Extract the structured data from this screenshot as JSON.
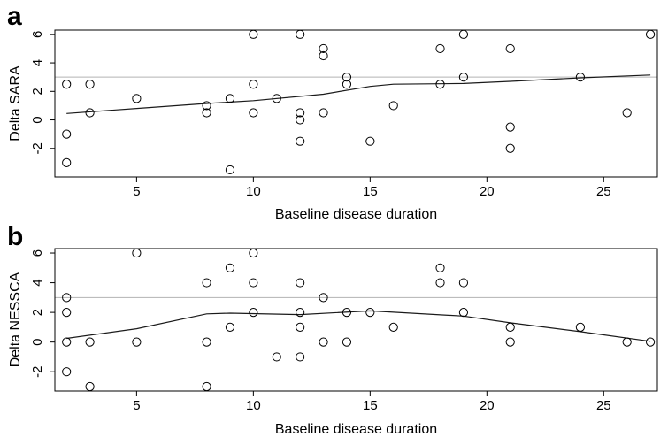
{
  "chart_data": [
    {
      "type": "scatter",
      "panel_label": "a",
      "title": "",
      "xlabel": "Baseline disease duration",
      "ylabel": "Delta SARA",
      "xlim": [
        1.5,
        27.3
      ],
      "ylim": [
        -4.0,
        6.3
      ],
      "x_ticks": [
        5,
        10,
        15,
        20,
        25
      ],
      "y_ticks": [
        -2,
        0,
        2,
        4,
        6
      ],
      "reference_line_y": 3,
      "grid": false,
      "points": [
        {
          "x": 2,
          "y": 2.5
        },
        {
          "x": 2,
          "y": -1
        },
        {
          "x": 2,
          "y": -3
        },
        {
          "x": 3,
          "y": 2.5
        },
        {
          "x": 3,
          "y": 0.5
        },
        {
          "x": 5,
          "y": 1.5
        },
        {
          "x": 8,
          "y": 1
        },
        {
          "x": 8,
          "y": 0.5
        },
        {
          "x": 9,
          "y": 1.5
        },
        {
          "x": 9,
          "y": -3.5
        },
        {
          "x": 10,
          "y": 6
        },
        {
          "x": 10,
          "y": 2.5
        },
        {
          "x": 10,
          "y": 0.5
        },
        {
          "x": 11,
          "y": 1.5
        },
        {
          "x": 12,
          "y": 6
        },
        {
          "x": 12,
          "y": 0.5
        },
        {
          "x": 12,
          "y": 0
        },
        {
          "x": 12,
          "y": -1.5
        },
        {
          "x": 13,
          "y": 5
        },
        {
          "x": 13,
          "y": 4.5
        },
        {
          "x": 13,
          "y": 0.5
        },
        {
          "x": 14,
          "y": 3
        },
        {
          "x": 14,
          "y": 2.5
        },
        {
          "x": 15,
          "y": -1.5
        },
        {
          "x": 16,
          "y": 1
        },
        {
          "x": 18,
          "y": 5
        },
        {
          "x": 18,
          "y": 2.5
        },
        {
          "x": 19,
          "y": 6
        },
        {
          "x": 19,
          "y": 3
        },
        {
          "x": 21,
          "y": 5
        },
        {
          "x": 21,
          "y": -0.5
        },
        {
          "x": 21,
          "y": -2
        },
        {
          "x": 24,
          "y": 3
        },
        {
          "x": 26,
          "y": 0.5
        },
        {
          "x": 27,
          "y": 6
        }
      ],
      "smooth_line": [
        {
          "x": 2,
          "y": 0.45
        },
        {
          "x": 5,
          "y": 0.8
        },
        {
          "x": 8,
          "y": 1.15
        },
        {
          "x": 10,
          "y": 1.35
        },
        {
          "x": 13,
          "y": 1.8
        },
        {
          "x": 15,
          "y": 2.35
        },
        {
          "x": 16,
          "y": 2.5
        },
        {
          "x": 19,
          "y": 2.55
        },
        {
          "x": 21,
          "y": 2.7
        },
        {
          "x": 24,
          "y": 2.95
        },
        {
          "x": 27,
          "y": 3.15
        }
      ]
    },
    {
      "type": "scatter",
      "panel_label": "b",
      "title": "",
      "xlabel": "Baseline disease duration",
      "ylabel": "Delta NESSCA",
      "xlim": [
        1.5,
        27.3
      ],
      "ylim": [
        -3.3,
        6.3
      ],
      "x_ticks": [
        5,
        10,
        15,
        20,
        25
      ],
      "y_ticks": [
        -2,
        0,
        2,
        4,
        6
      ],
      "reference_line_y": 3,
      "grid": false,
      "points": [
        {
          "x": 2,
          "y": 3
        },
        {
          "x": 2,
          "y": 2
        },
        {
          "x": 2,
          "y": 0
        },
        {
          "x": 2,
          "y": -2
        },
        {
          "x": 3,
          "y": 0
        },
        {
          "x": 3,
          "y": -3
        },
        {
          "x": 5,
          "y": 6
        },
        {
          "x": 5,
          "y": 0
        },
        {
          "x": 8,
          "y": 4
        },
        {
          "x": 8,
          "y": 0
        },
        {
          "x": 8,
          "y": -3
        },
        {
          "x": 9,
          "y": 5
        },
        {
          "x": 9,
          "y": 1
        },
        {
          "x": 10,
          "y": 6
        },
        {
          "x": 10,
          "y": 4
        },
        {
          "x": 10,
          "y": 2
        },
        {
          "x": 11,
          "y": -1
        },
        {
          "x": 12,
          "y": 4
        },
        {
          "x": 12,
          "y": 2
        },
        {
          "x": 12,
          "y": 1
        },
        {
          "x": 12,
          "y": -1
        },
        {
          "x": 13,
          "y": 3
        },
        {
          "x": 13,
          "y": 0
        },
        {
          "x": 14,
          "y": 2
        },
        {
          "x": 14,
          "y": 0
        },
        {
          "x": 15,
          "y": 2
        },
        {
          "x": 16,
          "y": 1
        },
        {
          "x": 18,
          "y": 5
        },
        {
          "x": 18,
          "y": 4
        },
        {
          "x": 19,
          "y": 4
        },
        {
          "x": 19,
          "y": 2
        },
        {
          "x": 21,
          "y": 1
        },
        {
          "x": 21,
          "y": 0
        },
        {
          "x": 24,
          "y": 1
        },
        {
          "x": 26,
          "y": 0
        },
        {
          "x": 27,
          "y": 0
        }
      ],
      "smooth_line": [
        {
          "x": 2,
          "y": 0.25
        },
        {
          "x": 5,
          "y": 0.9
        },
        {
          "x": 8,
          "y": 1.9
        },
        {
          "x": 9,
          "y": 1.95
        },
        {
          "x": 12,
          "y": 1.85
        },
        {
          "x": 15,
          "y": 2.1
        },
        {
          "x": 19,
          "y": 1.75
        },
        {
          "x": 21,
          "y": 1.3
        },
        {
          "x": 24,
          "y": 0.7
        },
        {
          "x": 27,
          "y": 0.05
        }
      ]
    }
  ]
}
